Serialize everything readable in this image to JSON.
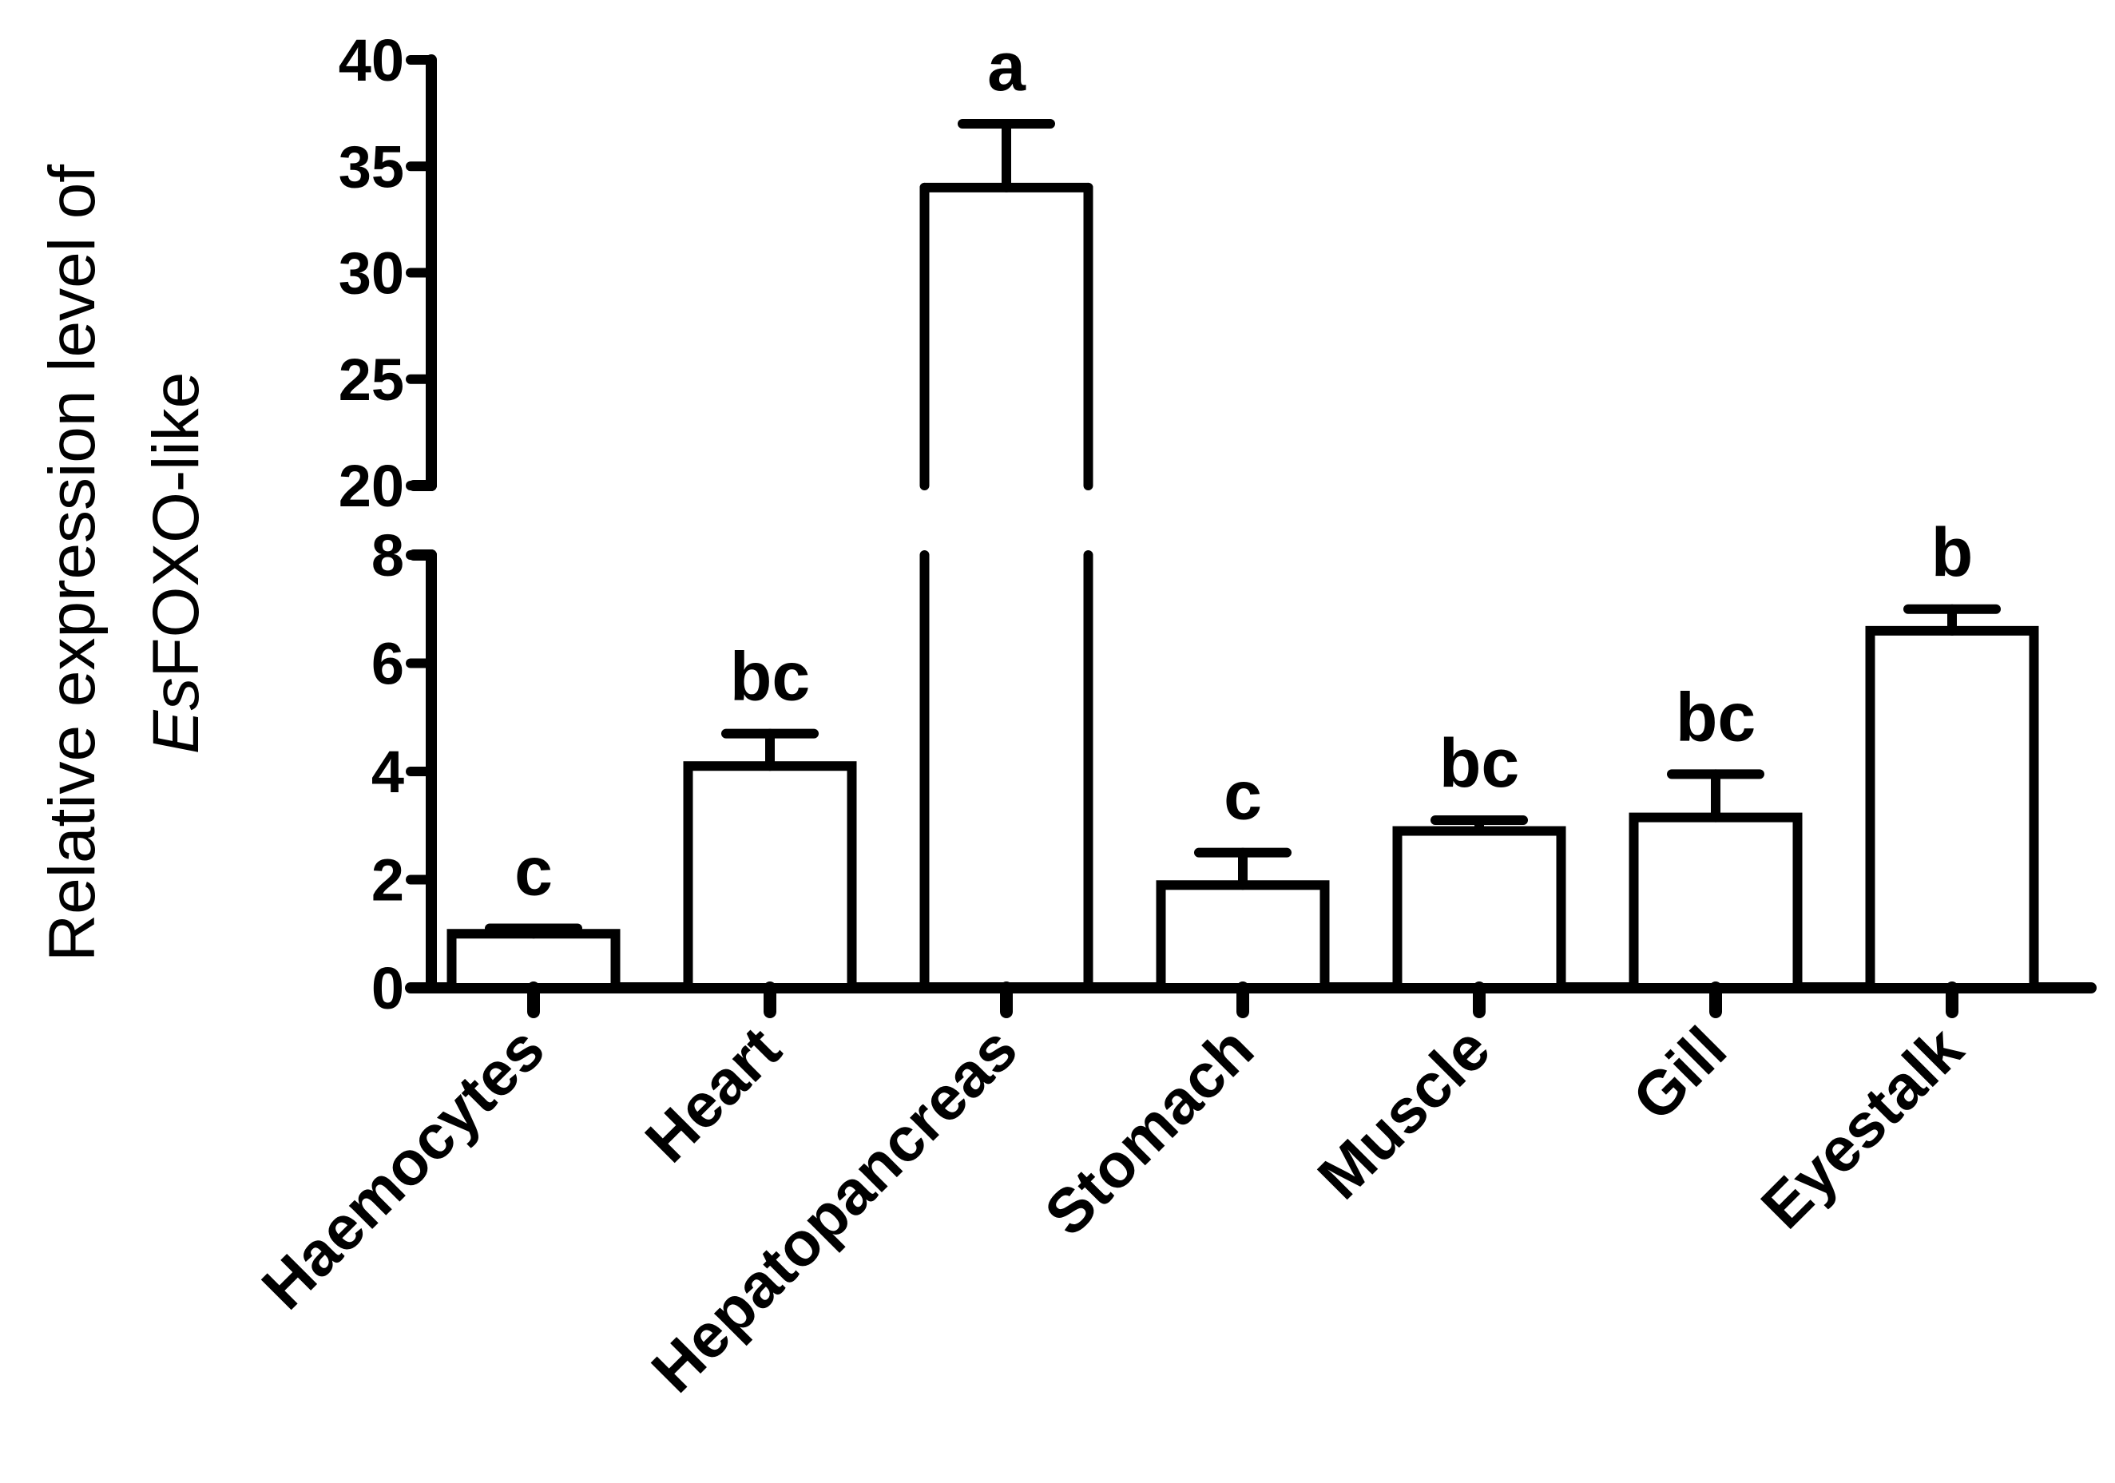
{
  "chart_data": {
    "type": "bar",
    "ylabel": {
      "line1": "Relative expression level of",
      "line2_italic": "Es",
      "line2_rest": "FOXO-like"
    },
    "categories": [
      "Haemocytes",
      "Heart",
      "Hepatopancreas",
      "Stomach",
      "Muscle",
      "Gill",
      "Eyestalk"
    ],
    "values": [
      1.0,
      4.1,
      34.0,
      1.9,
      2.9,
      3.15,
      6.6
    ],
    "errors": [
      0.1,
      0.6,
      3.0,
      0.6,
      0.2,
      0.8,
      0.4
    ],
    "significance": [
      "c",
      "bc",
      "a",
      "c",
      "bc",
      "bc",
      "b"
    ],
    "axis_break": {
      "lower": [
        0,
        8
      ],
      "upper": [
        20,
        40
      ]
    },
    "yticks_lower": [
      "0",
      "2",
      "4",
      "6",
      "8"
    ],
    "yticks_upper": [
      "20",
      "25",
      "30",
      "35",
      "40"
    ],
    "bar_fill": "#ffffff",
    "line_color": "#000000",
    "grid": false
  }
}
